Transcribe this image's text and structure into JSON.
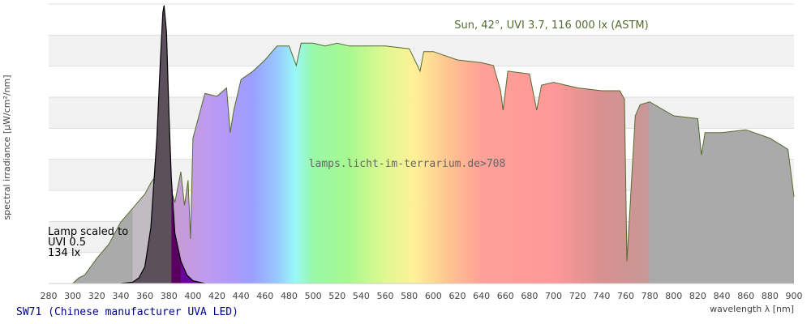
{
  "chart_data": {
    "type": "area",
    "title": "Sun, 42°, UVI 3.7, 116 000 lx (ASTM)",
    "watermark": "lamps.licht-im-terrarium.de>708",
    "lamp_note": [
      "Lamp scaled to",
      "UVI 0.5",
      "134 lx"
    ],
    "caption": "SW71 (Chinese manufacturer UVA LED)",
    "xlabel": "wavelength λ [nm]",
    "ylabel": "spectral irradiance [µW/cm²/nm]",
    "xlim": [
      280,
      900
    ],
    "ylim": [
      0,
      100
    ],
    "xticks": [
      280,
      300,
      320,
      340,
      360,
      380,
      400,
      420,
      440,
      460,
      480,
      500,
      520,
      540,
      560,
      580,
      600,
      620,
      640,
      660,
      680,
      700,
      720,
      740,
      760,
      780,
      800,
      820,
      840,
      860,
      880,
      900
    ],
    "series": [
      {
        "name": "Sun",
        "color": "#556b2f",
        "points": [
          [
            290,
            0
          ],
          [
            300,
            0
          ],
          [
            305,
            2
          ],
          [
            310,
            3
          ],
          [
            320,
            9
          ],
          [
            330,
            14
          ],
          [
            340,
            22
          ],
          [
            350,
            27
          ],
          [
            360,
            32
          ],
          [
            365,
            36
          ],
          [
            370,
            39
          ],
          [
            375,
            34
          ],
          [
            380,
            36
          ],
          [
            385,
            29
          ],
          [
            390,
            40
          ],
          [
            393,
            28
          ],
          [
            396,
            37
          ],
          [
            398,
            16
          ],
          [
            400,
            52
          ],
          [
            405,
            60
          ],
          [
            410,
            68
          ],
          [
            420,
            67
          ],
          [
            428,
            70
          ],
          [
            431,
            54
          ],
          [
            434,
            62
          ],
          [
            440,
            73
          ],
          [
            450,
            76
          ],
          [
            460,
            80
          ],
          [
            470,
            85
          ],
          [
            480,
            85
          ],
          [
            486,
            78
          ],
          [
            490,
            86
          ],
          [
            500,
            86
          ],
          [
            510,
            85
          ],
          [
            520,
            86
          ],
          [
            530,
            85
          ],
          [
            540,
            85
          ],
          [
            560,
            85
          ],
          [
            580,
            84
          ],
          [
            589,
            76
          ],
          [
            592,
            83
          ],
          [
            600,
            83
          ],
          [
            620,
            80
          ],
          [
            640,
            79
          ],
          [
            650,
            78
          ],
          [
            656,
            69
          ],
          [
            658,
            62
          ],
          [
            662,
            76
          ],
          [
            680,
            75
          ],
          [
            686,
            62
          ],
          [
            690,
            71
          ],
          [
            700,
            72
          ],
          [
            720,
            70
          ],
          [
            740,
            69
          ],
          [
            755,
            69
          ],
          [
            759,
            66
          ],
          [
            761,
            8
          ],
          [
            764,
            30
          ],
          [
            768,
            60
          ],
          [
            772,
            64
          ],
          [
            780,
            65
          ],
          [
            800,
            60
          ],
          [
            820,
            59
          ],
          [
            823,
            46
          ],
          [
            826,
            54
          ],
          [
            840,
            54
          ],
          [
            860,
            55
          ],
          [
            880,
            52
          ],
          [
            895,
            48
          ],
          [
            900,
            31
          ]
        ]
      },
      {
        "name": "Lamp",
        "color": "#000000",
        "points": [
          [
            340,
            0
          ],
          [
            350,
            0.5
          ],
          [
            355,
            2
          ],
          [
            360,
            6
          ],
          [
            365,
            20
          ],
          [
            370,
            52
          ],
          [
            373,
            80
          ],
          [
            375,
            97
          ],
          [
            376,
            99.5
          ],
          [
            378,
            90
          ],
          [
            380,
            62
          ],
          [
            382,
            38
          ],
          [
            385,
            18
          ],
          [
            390,
            8
          ],
          [
            395,
            3
          ],
          [
            400,
            1
          ],
          [
            410,
            0
          ]
        ]
      }
    ]
  }
}
